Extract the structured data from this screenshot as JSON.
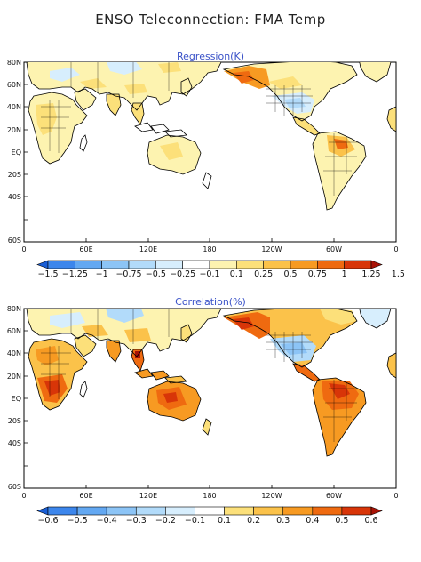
{
  "title": "ENSO Teleconnection: FMA Temp",
  "panels": [
    {
      "title": "Regression(K)",
      "lat_labels": [
        "80N",
        "60N",
        "40N",
        "20N",
        "EQ",
        "20S",
        "40S",
        "60S"
      ],
      "lon_labels": [
        "0",
        "60E",
        "120E",
        "180",
        "120W",
        "60W",
        "0"
      ],
      "colorbar": {
        "labels": [
          "−1.5",
          "−1.25",
          "−1",
          "−0.75",
          "−0.5",
          "−0.25",
          "−0.1",
          "0.1",
          "0.25",
          "0.5",
          "0.75",
          "1",
          "1.25",
          "1.5"
        ],
        "colors": [
          "#1a5fd6",
          "#3c86ec",
          "#63a8f2",
          "#8cc4f6",
          "#b2dbfa",
          "#d7eefd",
          "#ffffff",
          "#fdf3b0",
          "#fce07a",
          "#fbc24a",
          "#f79a22",
          "#ef6a10",
          "#d83508",
          "#a81205"
        ]
      }
    },
    {
      "title": "Correlation(%)",
      "lat_labels": [
        "80N",
        "60N",
        "40N",
        "20N",
        "EQ",
        "20S",
        "40S",
        "60S"
      ],
      "lon_labels": [
        "0",
        "60E",
        "120E",
        "180",
        "120W",
        "60W",
        "0"
      ],
      "colorbar": {
        "labels": [
          "−0.6",
          "−0.5",
          "−0.4",
          "−0.3",
          "−0.2",
          "−0.1",
          "0.1",
          "0.2",
          "0.3",
          "0.4",
          "0.5",
          "0.6"
        ],
        "colors": [
          "#1a5fd6",
          "#3c86ec",
          "#63a8f2",
          "#8cc4f6",
          "#b2dbfa",
          "#d7eefd",
          "#ffffff",
          "#fce07a",
          "#fbc24a",
          "#f79a22",
          "#ef6a10",
          "#d83508",
          "#a81205"
        ]
      }
    }
  ]
}
